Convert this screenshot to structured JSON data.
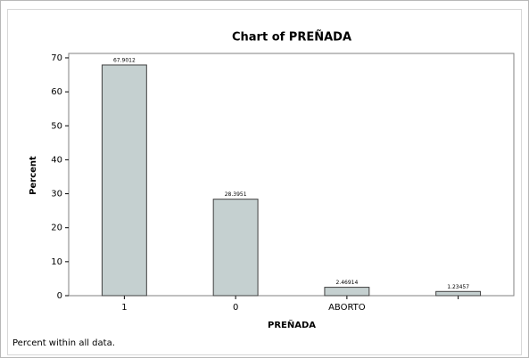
{
  "chart_data": {
    "type": "bar",
    "title": "Chart of PREÑADA",
    "categories": [
      "1",
      "0",
      "ABORTO",
      null
    ],
    "values": [
      67.9012,
      28.3951,
      2.46914,
      1.23457
    ],
    "color": "#c5d0d0",
    "xlabel": "PREÑADA",
    "ylabel": "Percent",
    "ylim": [
      0,
      71.3
    ],
    "yticks": [
      0,
      10,
      20,
      30,
      40,
      50,
      60,
      70
    ],
    "grid": false,
    "footnote": "Percent within all data."
  }
}
